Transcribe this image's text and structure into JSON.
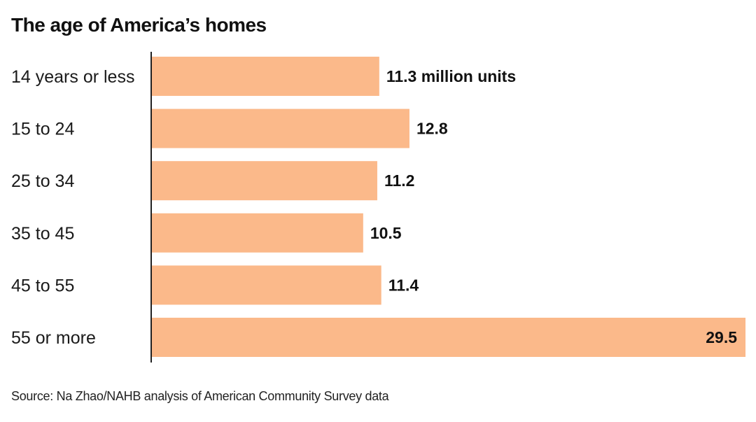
{
  "chart_data": {
    "type": "bar",
    "orientation": "horizontal",
    "title": "The age of America’s homes",
    "categories": [
      "14 years or less",
      "15 to 24",
      "25 to 34",
      "35 to 45",
      "45 to 55",
      "55 or more"
    ],
    "values": [
      11.3,
      12.8,
      11.2,
      10.5,
      11.4,
      29.5
    ],
    "value_labels": [
      "11.3 million units",
      "12.8",
      "11.2",
      "10.5",
      "11.4",
      "29.5"
    ],
    "unit": "million units",
    "xlim": [
      0,
      29.5
    ],
    "bar_color": "#fbb98a",
    "source": "Source: Na Zhao/NAHB analysis of American Community Survey data"
  }
}
